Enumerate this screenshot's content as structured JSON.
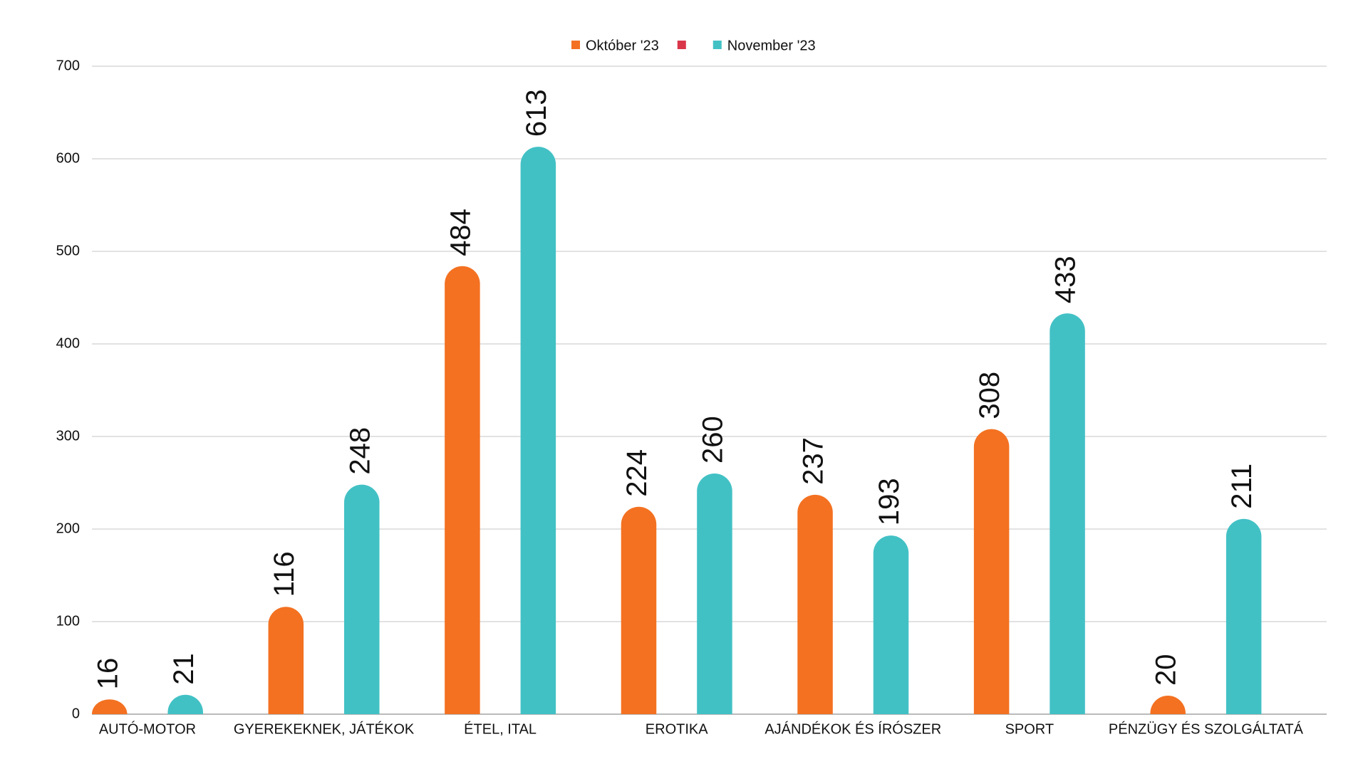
{
  "chart_data": {
    "type": "bar",
    "categories": [
      "AUTÓ-MOTOR",
      "GYEREKEKNEK, JÁTÉKOK",
      "ÉTEL, ITAL",
      "EROTIKA",
      "AJÁNDÉKOK ÉS ÍRÓSZER",
      "SPORT",
      "PÉNZÜGY ÉS SZOLGÁLTATÁ"
    ],
    "series": [
      {
        "name": "Október '23",
        "color": "#f37121",
        "values": [
          16,
          116,
          484,
          224,
          237,
          308,
          20
        ]
      },
      {
        "color": "#d9364a",
        "values": [
          null,
          null,
          null,
          null,
          null,
          null,
          null
        ]
      },
      {
        "name": "November '23",
        "color": "#42c1c5",
        "values": [
          21,
          248,
          613,
          260,
          193,
          433,
          211
        ]
      }
    ],
    "ylim": [
      0,
      700
    ],
    "yticks": [
      0,
      100,
      200,
      300,
      400,
      500,
      600,
      700
    ],
    "grid": true,
    "legend": "top"
  }
}
